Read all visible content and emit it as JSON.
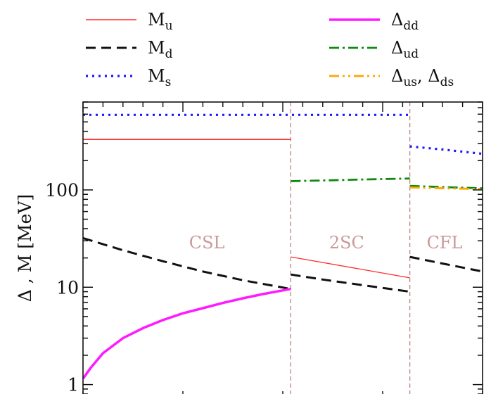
{
  "chart_data": {
    "type": "line",
    "title": "",
    "xlabel": "",
    "ylabel": "Δ , M  [MeV]",
    "yscale": "log",
    "ylim": [
      0.8,
      800
    ],
    "xlim": [
      0,
      1
    ],
    "yticks": [
      {
        "value": 1,
        "label": "1"
      },
      {
        "value": 10,
        "label": "10"
      },
      {
        "value": 100,
        "label": "100"
      }
    ],
    "grid": false,
    "legend_position": "top",
    "legend": [
      {
        "id": "mu",
        "label": "M",
        "sub": "u",
        "color": "#ff2b2b",
        "dash": "solid",
        "width": 1.6
      },
      {
        "id": "md",
        "label": "M",
        "sub": "d",
        "color": "#111111",
        "dash": "14,8",
        "width": 3
      },
      {
        "id": "ms",
        "label": "M",
        "sub": "s",
        "color": "#1a1aff",
        "dash": "3,6",
        "width": 3.2
      },
      {
        "id": "ddd",
        "label": "Δ",
        "sub": "dd",
        "color": "#ff1aff",
        "dash": "solid",
        "width": 3.5
      },
      {
        "id": "dud",
        "label": "Δ",
        "sub": "ud",
        "color": "#0f8a0f",
        "dash": "14,5,3,5",
        "width": 2.8
      },
      {
        "id": "dus",
        "label": "Δ",
        "sub": "us",
        "extra": ", Δ",
        "sub2": "ds",
        "color": "#ffa500",
        "dash": "14,5,3,5,3,5",
        "width": 2.8
      }
    ],
    "phases": [
      {
        "label": "CSL",
        "x": 0.31
      },
      {
        "label": "2SC",
        "x": 0.66
      },
      {
        "label": "CFL",
        "x": 0.905
      }
    ],
    "phase_boundaries": [
      0.52,
      0.818
    ],
    "series": [
      {
        "name": "Mu",
        "color": "#ff2b2b",
        "dash": "solid",
        "width": 1.6,
        "x": [
          0,
          0.52
        ],
        "y": [
          330,
          330
        ]
      },
      {
        "name": "Mu",
        "color": "#ff2b2b",
        "dash": "solid",
        "width": 1.3,
        "x": [
          0.52,
          0.818
        ],
        "y": [
          20.5,
          12.5
        ]
      },
      {
        "name": "Md",
        "color": "#111111",
        "dash": "14,8",
        "width": 3,
        "x": [
          0,
          0.1,
          0.2,
          0.3,
          0.4,
          0.52
        ],
        "y": [
          32,
          24,
          18.5,
          14.5,
          11.8,
          9.6
        ]
      },
      {
        "name": "Md",
        "color": "#111111",
        "dash": "14,8",
        "width": 3,
        "x": [
          0.52,
          0.6,
          0.7,
          0.818
        ],
        "y": [
          13.5,
          12,
          10.5,
          9
        ]
      },
      {
        "name": "Md",
        "color": "#111111",
        "dash": "14,8",
        "width": 3,
        "x": [
          0.818,
          0.9,
          1.0
        ],
        "y": [
          20.5,
          17.5,
          14.5
        ]
      },
      {
        "name": "Ms",
        "color": "#1a1aff",
        "dash": "3,6",
        "width": 3.2,
        "x": [
          0,
          0.818
        ],
        "y": [
          590,
          590
        ]
      },
      {
        "name": "Ms",
        "color": "#1a1aff",
        "dash": "3,6",
        "width": 3.2,
        "x": [
          0.818,
          0.9,
          1.0
        ],
        "y": [
          280,
          260,
          235
        ]
      },
      {
        "name": "Δdd",
        "color": "#ff1aff",
        "dash": "solid",
        "width": 3.5,
        "x": [
          0,
          0.02,
          0.05,
          0.1,
          0.15,
          0.2,
          0.25,
          0.3,
          0.35,
          0.4,
          0.45,
          0.52
        ],
        "y": [
          1.15,
          1.5,
          2.1,
          3.0,
          3.8,
          4.6,
          5.4,
          6.1,
          6.9,
          7.7,
          8.5,
          9.6
        ]
      },
      {
        "name": "Δud",
        "color": "#0f8a0f",
        "dash": "14,5,3,5",
        "width": 2.8,
        "x": [
          0.52,
          0.6,
          0.7,
          0.818
        ],
        "y": [
          123,
          125,
          128,
          131
        ]
      },
      {
        "name": "Δud",
        "color": "#0f8a0f",
        "dash": "14,5,3,5",
        "width": 2.8,
        "x": [
          0.818,
          0.9,
          1.0
        ],
        "y": [
          110,
          107,
          104
        ]
      },
      {
        "name": "Δus, Δds",
        "color": "#ffa500",
        "dash": "14,5,3,5,3,5",
        "width": 2.8,
        "x": [
          0.818,
          0.9,
          1.0
        ],
        "y": [
          106,
          104,
          102
        ]
      }
    ]
  }
}
